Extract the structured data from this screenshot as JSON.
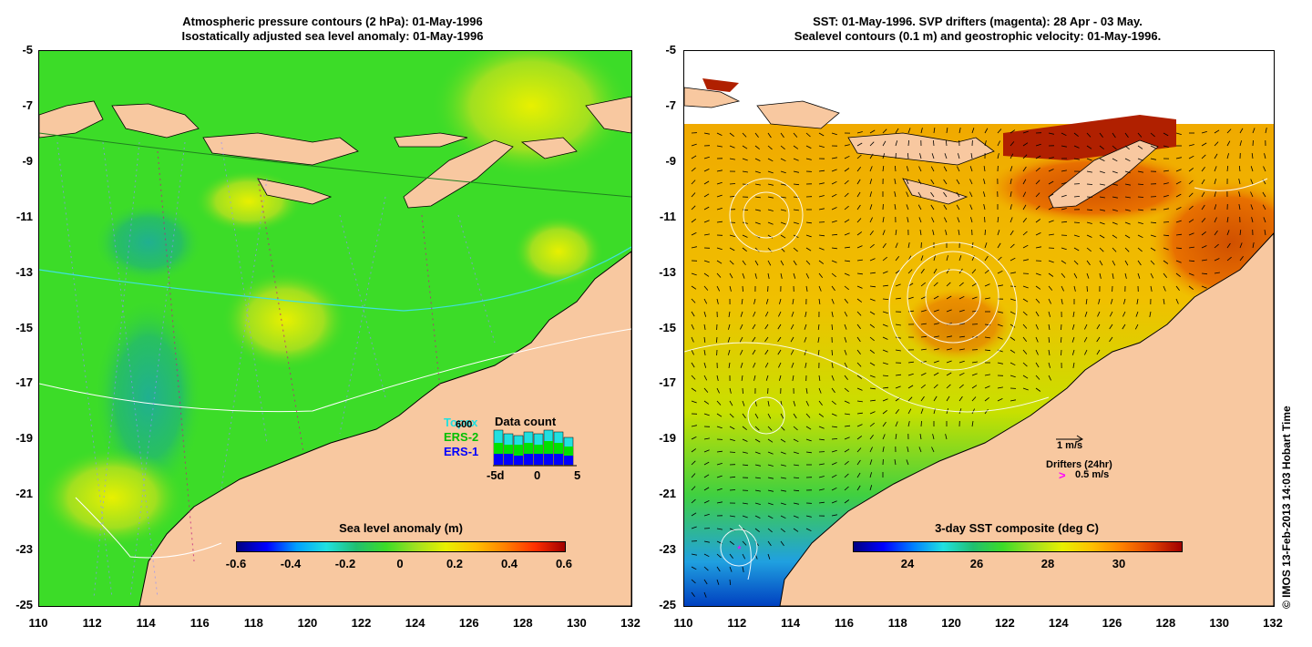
{
  "left_panel": {
    "title_line1": "Atmospheric pressure contours (2 hPa): 01-May-1996",
    "title_line2": "Isostatically adjusted sea level anomaly: 01-May-1996",
    "colorbar_title": "Sea level anomaly (m)",
    "colorbar_ticks": [
      "-0.6",
      "-0.4",
      "-0.2",
      "0",
      "0.2",
      "0.4",
      "0.6"
    ],
    "legend": {
      "missions": [
        "Topex",
        "ERS-2",
        "ERS-1"
      ],
      "mission_colors": [
        "#20e0e0",
        "#00c000",
        "#0000ff"
      ],
      "data_count_title": "Data count",
      "count_label": "600",
      "x_ticks": [
        "-5d",
        "0",
        "5"
      ]
    }
  },
  "right_panel": {
    "title_line1": "SST: 01-May-1996. SVP drifters (magenta): 28 Apr - 03 May.",
    "title_line2": "Sealevel contours (0.1 m) and geostrophic velocity: 01-May-1996.",
    "colorbar_title": "3-day SST composite (deg C)",
    "colorbar_ticks": [
      "24",
      "26",
      "28",
      "30"
    ],
    "velocity_scale_label": "1 m/s",
    "drifters_label": "Drifters (24hr)",
    "drifter_speed_label": "0.5 m/s",
    "drifter_marker": ">"
  },
  "axes": {
    "y_ticks": [
      "-5",
      "-7",
      "-9",
      "-11",
      "-13",
      "-15",
      "-17",
      "-19",
      "-21",
      "-23",
      "-25"
    ],
    "x_ticks": [
      "110",
      "112",
      "114",
      "116",
      "118",
      "120",
      "122",
      "124",
      "126",
      "128",
      "130",
      "132"
    ]
  },
  "credit": "© IMOS 13-Feb-2013 14:03 Hobart Time",
  "colors": {
    "land": "#f8c8a0",
    "sla_background": "#3cdc28",
    "sst_background": "#f0a000"
  }
}
